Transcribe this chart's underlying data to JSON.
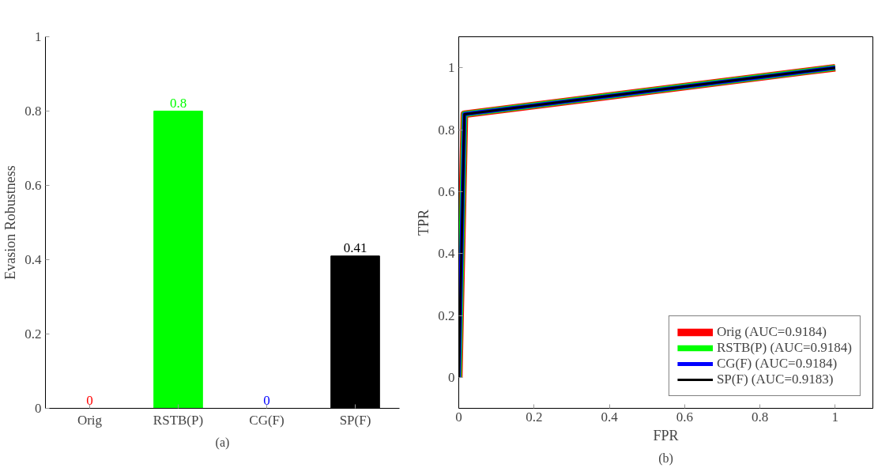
{
  "chart_data": [
    {
      "type": "bar",
      "ylabel": "Evasion Robustness",
      "categories": [
        "Orig",
        "RSTB(P)",
        "CG(F)",
        "SP(F)"
      ],
      "values": [
        0,
        0.8,
        0,
        0.41
      ],
      "colors": [
        "#ff0000",
        "#00ff00",
        "#0000ff",
        "#000000"
      ],
      "data_labels": true,
      "ylim": [
        0,
        1
      ],
      "yticks": [
        0,
        0.2,
        0.4,
        0.6,
        0.8,
        1
      ],
      "grid": false,
      "annotations": [
        "(a)"
      ]
    },
    {
      "type": "line",
      "xlabel": "FPR",
      "ylabel": "TPR",
      "xlim": [
        0,
        1.1
      ],
      "ylim": [
        -0.1,
        1.1
      ],
      "xticks": [
        0,
        0.2,
        0.4,
        0.6,
        0.8,
        1
      ],
      "yticks": [
        0,
        0.2,
        0.4,
        0.6,
        0.8,
        1
      ],
      "grid": false,
      "legend": "bottom right",
      "line_style": "solid",
      "marker": "none",
      "annotations": [
        "(b)"
      ],
      "series": [
        {
          "name": "Orig (AUC=0.9184)",
          "color": "#ff0000",
          "x": [
            0,
            0.015,
            1
          ],
          "values": [
            0,
            0.85,
            1
          ]
        },
        {
          "name": "RSTB(P) (AUC=0.9184)",
          "color": "#00ff00",
          "x": [
            0,
            0.015,
            1
          ],
          "values": [
            0,
            0.85,
            1
          ]
        },
        {
          "name": "CG(F) (AUC=0.9184)",
          "color": "#0000ff",
          "x": [
            0,
            0.015,
            1
          ],
          "values": [
            0,
            0.85,
            1
          ]
        },
        {
          "name": "SP(F) (AUC=0.9183)",
          "color": "#000000",
          "x": [
            0,
            0.015,
            1
          ],
          "values": [
            0,
            0.85,
            1
          ]
        }
      ]
    }
  ]
}
